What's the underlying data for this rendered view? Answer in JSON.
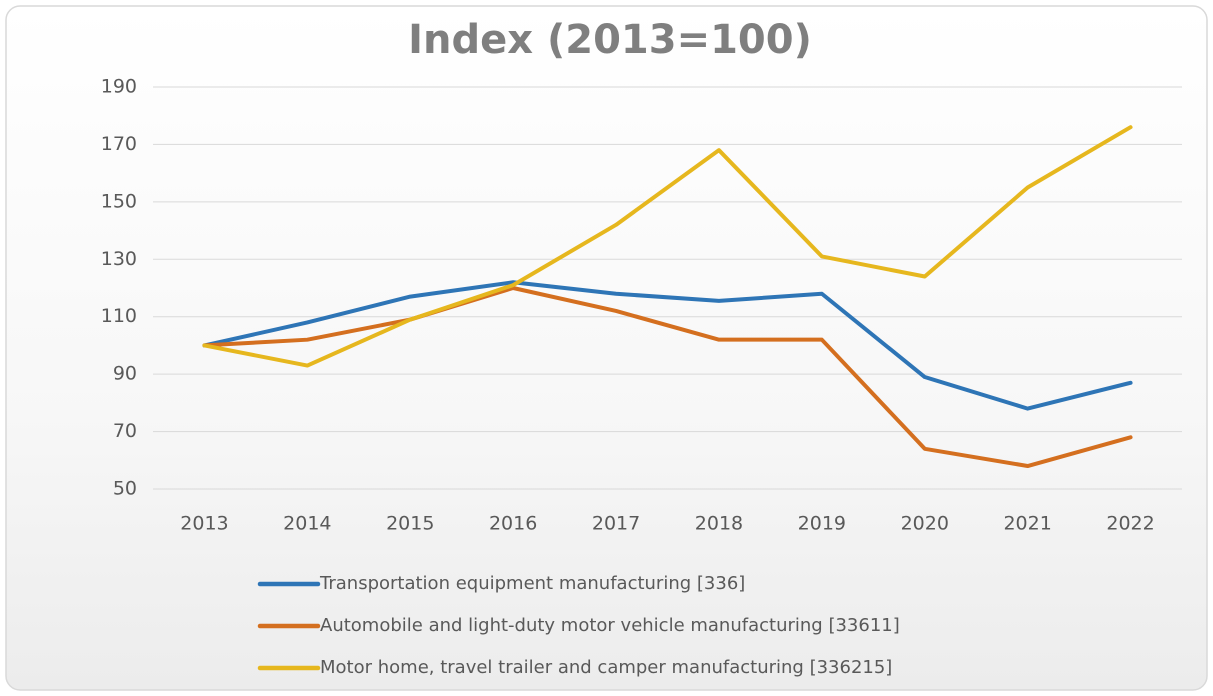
{
  "chart_data": {
    "type": "line",
    "title": "Index (2013=100)",
    "categories": [
      "2013",
      "2014",
      "2015",
      "2016",
      "2017",
      "2018",
      "2019",
      "2020",
      "2021",
      "2022"
    ],
    "series": [
      {
        "name": "Transportation equipment manufacturing [336]",
        "color": "#2e75b6",
        "values": [
          100,
          108,
          117,
          122,
          118,
          115.5,
          118,
          89,
          78,
          87
        ]
      },
      {
        "name": "Automobile and light-duty motor vehicle manufacturing [33611]",
        "color": "#d46f1f",
        "values": [
          100,
          102,
          109,
          120,
          112,
          102,
          102,
          64,
          58,
          68
        ]
      },
      {
        "name": "Motor home, travel trailer and camper manufacturing [336215]",
        "color": "#e6b71e",
        "values": [
          100,
          93,
          109,
          121,
          142,
          168,
          131,
          124,
          155,
          176
        ]
      }
    ],
    "ylim": [
      50,
      190
    ],
    "yticks": [
      50,
      70,
      90,
      110,
      130,
      150,
      170,
      190
    ],
    "grid": true,
    "legend": "bottom"
  }
}
